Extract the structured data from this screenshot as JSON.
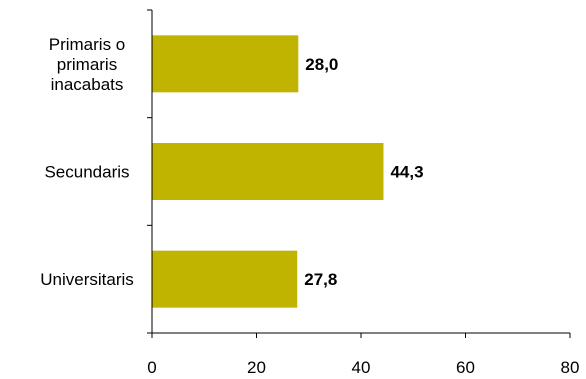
{
  "chart_data": {
    "type": "bar",
    "orientation": "horizontal",
    "categories": [
      [
        "Primaris o",
        "primaris",
        "inacabats"
      ],
      [
        "Secundaris"
      ],
      [
        "Universitaris"
      ]
    ],
    "values": [
      28.0,
      44.3,
      27.8
    ],
    "value_labels": [
      "28,0",
      "44,3",
      "27,8"
    ],
    "xlim": [
      0,
      80
    ],
    "x_ticks": [
      0,
      20,
      40,
      60,
      80
    ],
    "x_tick_labels": [
      "0",
      "20",
      "40",
      "60",
      "80"
    ],
    "grid": false,
    "legend": "none",
    "bar_color": "#c0b400",
    "title": "",
    "xlabel": "",
    "ylabel": ""
  }
}
